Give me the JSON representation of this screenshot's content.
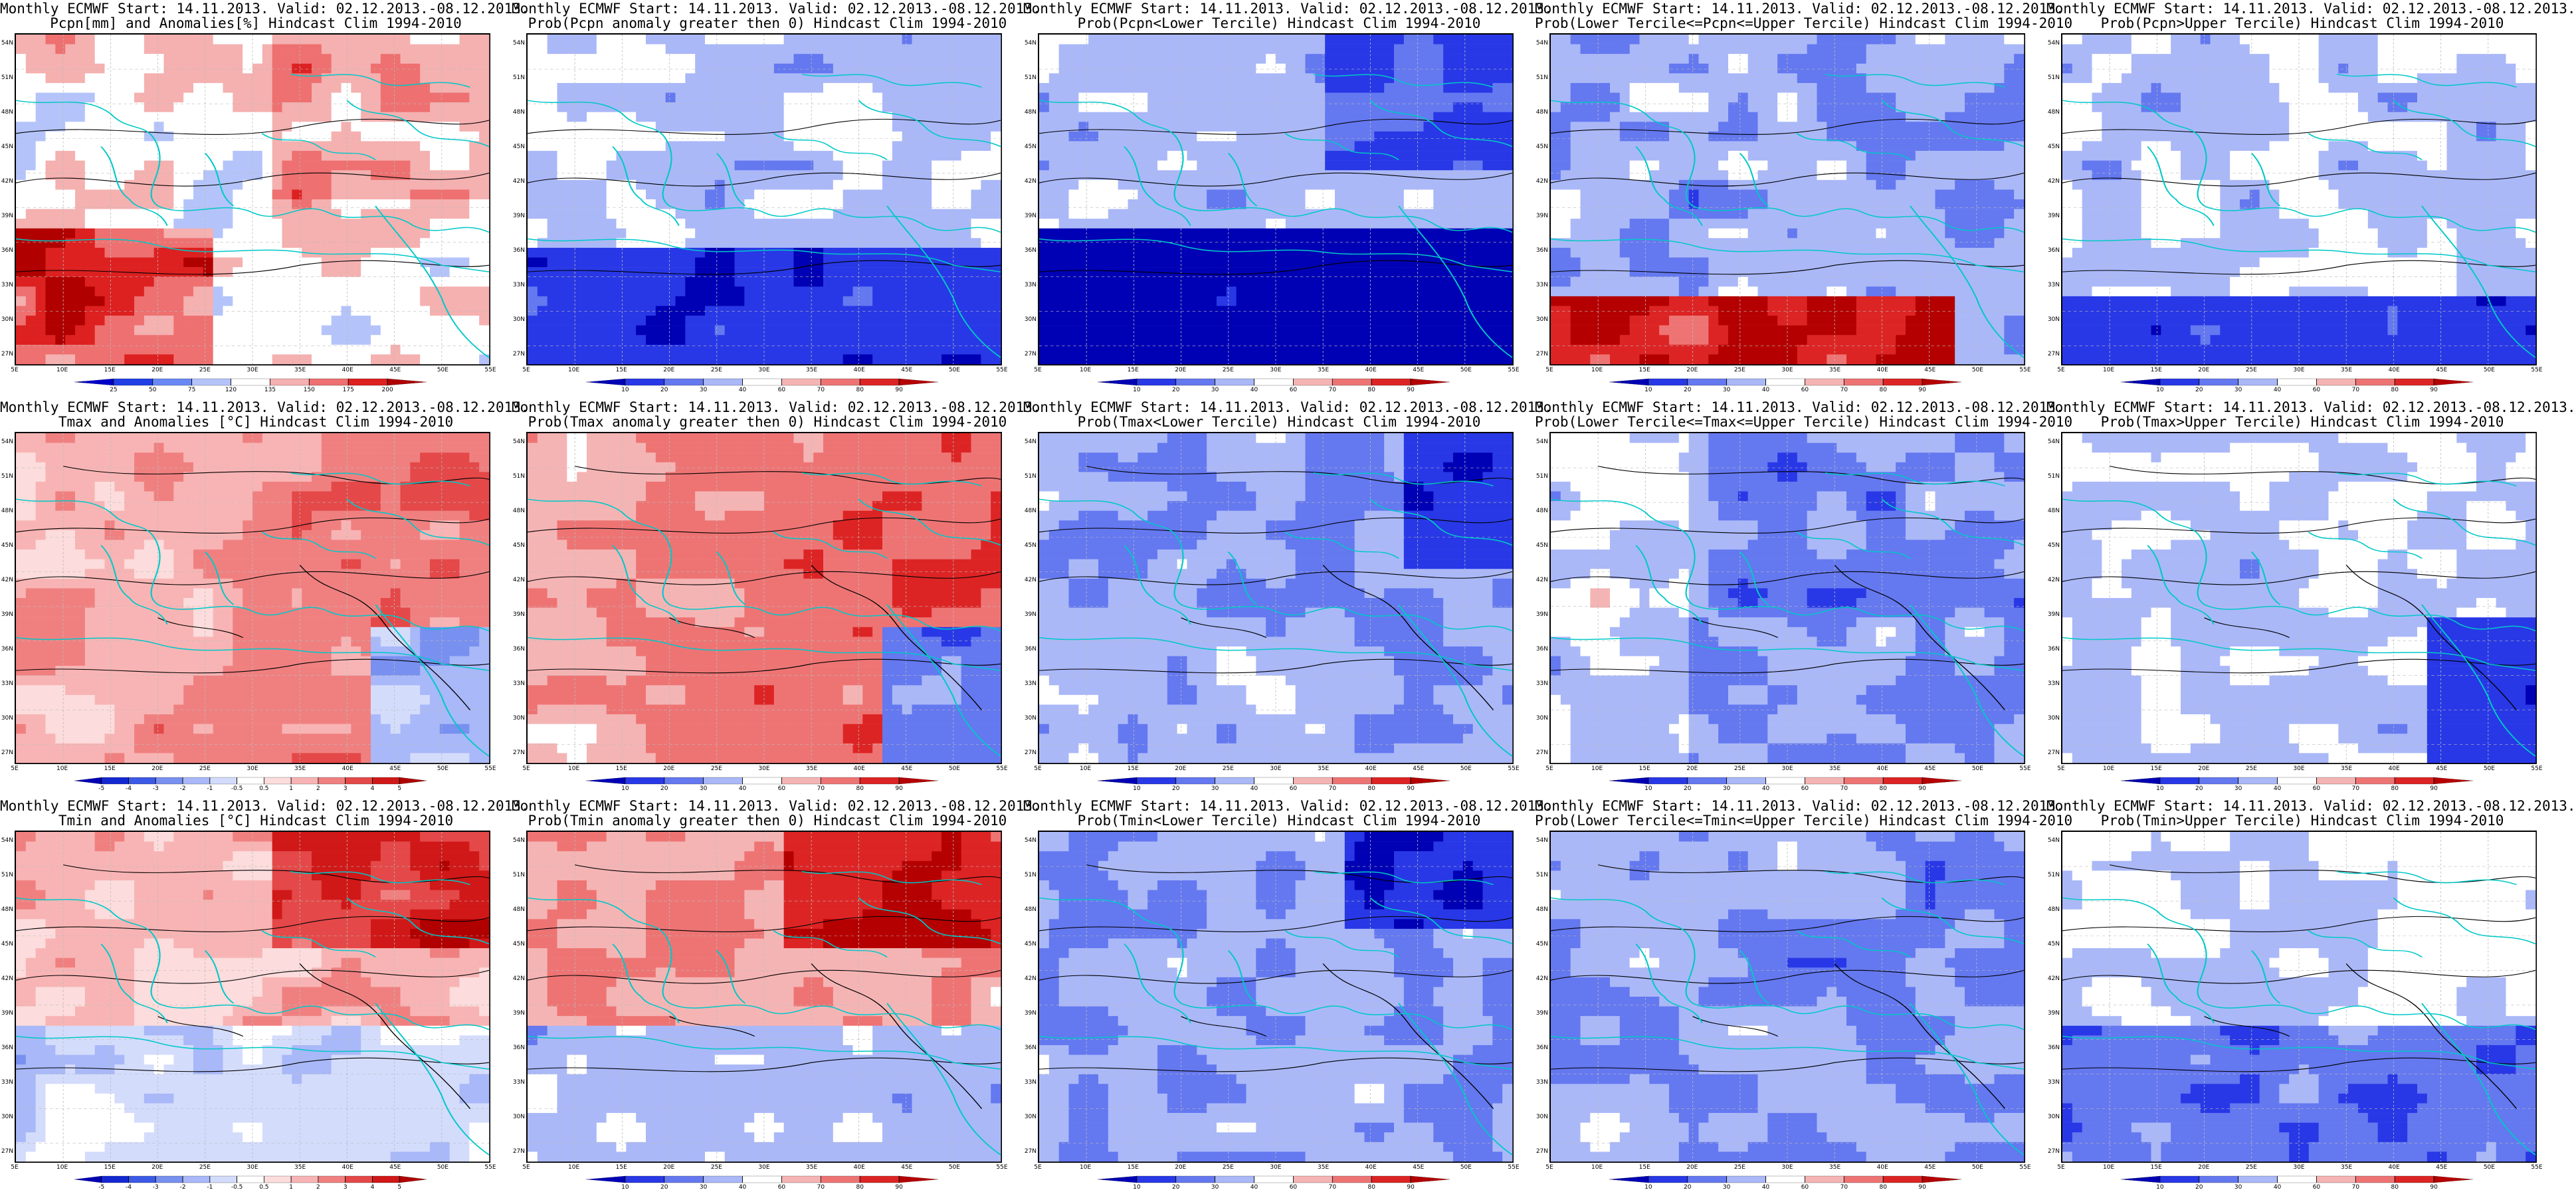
{
  "panels": [
    {
      "title_line1": "Monthly ECMWF Start: 14.11.2013. Valid: 02.12.2013.-08.12.2013.",
      "title_line2": "Pcpn[mm] and Anomalies[%] Hindcast Clim 1994-2010",
      "field": "precip_anomaly",
      "colorbar": "pcpn"
    },
    {
      "title_line1": "Monthly ECMWF Start: 14.11.2013. Valid: 02.12.2013.-08.12.2013.",
      "title_line2": "Prob(Pcpn anomaly greater then 0) Hindcast Clim 1994-2010",
      "field": "precip_prob_pos",
      "colorbar": "prob"
    },
    {
      "title_line1": "Monthly ECMWF Start: 14.11.2013. Valid: 02.12.2013.-08.12.2013.",
      "title_line2": "Prob(Pcpn<Lower Tercile) Hindcast Clim 1994-2010",
      "field": "precip_prob_lower",
      "colorbar": "prob"
    },
    {
      "title_line1": "Monthly ECMWF Start: 14.11.2013. Valid: 02.12.2013.-08.12.2013.",
      "title_line2": "Prob(Lower Tercile<=Pcpn<=Upper Tercile) Hindcast Clim 1994-2010",
      "field": "precip_prob_middle",
      "colorbar": "prob"
    },
    {
      "title_line1": "Monthly ECMWF Start: 14.11.2013. Valid: 02.12.2013.-08.12.2013.",
      "title_line2": "Prob(Pcpn>Upper Tercile) Hindcast Clim 1994-2010",
      "field": "precip_prob_upper",
      "colorbar": "prob"
    },
    {
      "title_line1": "Monthly ECMWF Start: 14.11.2013. Valid: 02.12.2013.-08.12.2013.",
      "title_line2": "Tmax and Anomalies [°C] Hindcast Clim 1994-2010",
      "field": "tmax_anomaly",
      "colorbar": "temp"
    },
    {
      "title_line1": "Monthly ECMWF Start: 14.11.2013. Valid: 02.12.2013.-08.12.2013.",
      "title_line2": "Prob(Tmax anomaly greater then 0) Hindcast Clim 1994-2010",
      "field": "tmax_prob_pos",
      "colorbar": "prob"
    },
    {
      "title_line1": "Monthly ECMWF Start: 14.11.2013. Valid: 02.12.2013.-08.12.2013.",
      "title_line2": "Prob(Tmax<Lower Tercile) Hindcast Clim 1994-2010",
      "field": "tmax_prob_lower",
      "colorbar": "prob"
    },
    {
      "title_line1": "Monthly ECMWF Start: 14.11.2013. Valid: 02.12.2013.-08.12.2013.",
      "title_line2": "Prob(Lower Tercile<=Tmax<=Upper Tercile) Hindcast Clim 1994-2010",
      "field": "tmax_prob_middle",
      "colorbar": "prob"
    },
    {
      "title_line1": "Monthly ECMWF Start: 14.11.2013. Valid: 02.12.2013.-08.12.2013.",
      "title_line2": "Prob(Tmax>Upper Tercile) Hindcast Clim 1994-2010",
      "field": "tmax_prob_upper",
      "colorbar": "prob"
    },
    {
      "title_line1": "Monthly ECMWF Start: 14.11.2013. Valid: 02.12.2013.-08.12.2013.",
      "title_line2": "Tmin and Anomalies [°C] Hindcast Clim 1994-2010",
      "field": "tmin_anomaly",
      "colorbar": "temp"
    },
    {
      "title_line1": "Monthly ECMWF Start: 14.11.2013. Valid: 02.12.2013.-08.12.2013.",
      "title_line2": "Prob(Tmin anomaly greater then 0) Hindcast Clim 1994-2010",
      "field": "tmin_prob_pos",
      "colorbar": "prob"
    },
    {
      "title_line1": "Monthly ECMWF Start: 14.11.2013. Valid: 02.12.2013.-08.12.2013.",
      "title_line2": "Prob(Tmin<Lower Tercile) Hindcast Clim 1994-2010",
      "field": "tmin_prob_lower",
      "colorbar": "prob"
    },
    {
      "title_line1": "Monthly ECMWF Start: 14.11.2013. Valid: 02.12.2013.-08.12.2013.",
      "title_line2": "Prob(Lower Tercile<=Tmin<=Upper Tercile) Hindcast Clim 1994-2010",
      "field": "tmin_prob_middle",
      "colorbar": "prob"
    },
    {
      "title_line1": "Monthly ECMWF Start: 14.11.2013. Valid: 02.12.2013.-08.12.2013.",
      "title_line2": "Prob(Tmin>Upper Tercile) Hindcast Clim 1994-2010",
      "field": "tmin_prob_upper",
      "colorbar": "prob"
    }
  ],
  "axes": {
    "lat_labels": [
      "54N",
      "51N",
      "48N",
      "45N",
      "42N",
      "39N",
      "36N",
      "33N",
      "30N",
      "27N"
    ],
    "lon_labels": [
      "5E",
      "10E",
      "15E",
      "20E",
      "25E",
      "30E",
      "35E",
      "40E",
      "45E",
      "50E",
      "55E"
    ]
  },
  "colorbars": {
    "pcpn": {
      "labels": [
        "25",
        "50",
        "75",
        "120",
        "135",
        "150",
        "175",
        "200"
      ],
      "colors": [
        "#0000c8",
        "#2040e6",
        "#6a88f5",
        "#b4c4fa",
        "#ffffff",
        "#f5b0b0",
        "#ee7070",
        "#dd2020",
        "#b00000"
      ]
    },
    "prob": {
      "labels": [
        "10",
        "20",
        "30",
        "40",
        "60",
        "70",
        "80",
        "90"
      ],
      "colors": [
        "#0000b4",
        "#2838e6",
        "#6478f0",
        "#aab8f8",
        "#ffffff",
        "#f5b4b4",
        "#ee7474",
        "#dd2424",
        "#b40000"
      ]
    },
    "temp": {
      "labels": [
        "-5",
        "-4",
        "-3",
        "-2",
        "-1",
        "-0.5",
        "0.5",
        "1",
        "2",
        "3",
        "4",
        "5"
      ],
      "colors": [
        "#0000b4",
        "#1428d2",
        "#3c5ae6",
        "#7890f0",
        "#a8b8f8",
        "#d4dcfc",
        "#ffffff",
        "#fcdcdc",
        "#f8b4b4",
        "#f08080",
        "#e44848",
        "#d01818",
        "#b00000"
      ]
    }
  },
  "colors": {
    "coastline": "#00c8c8",
    "contour": "#000000",
    "red": "#cc0000",
    "blue": "#0000c0"
  }
}
